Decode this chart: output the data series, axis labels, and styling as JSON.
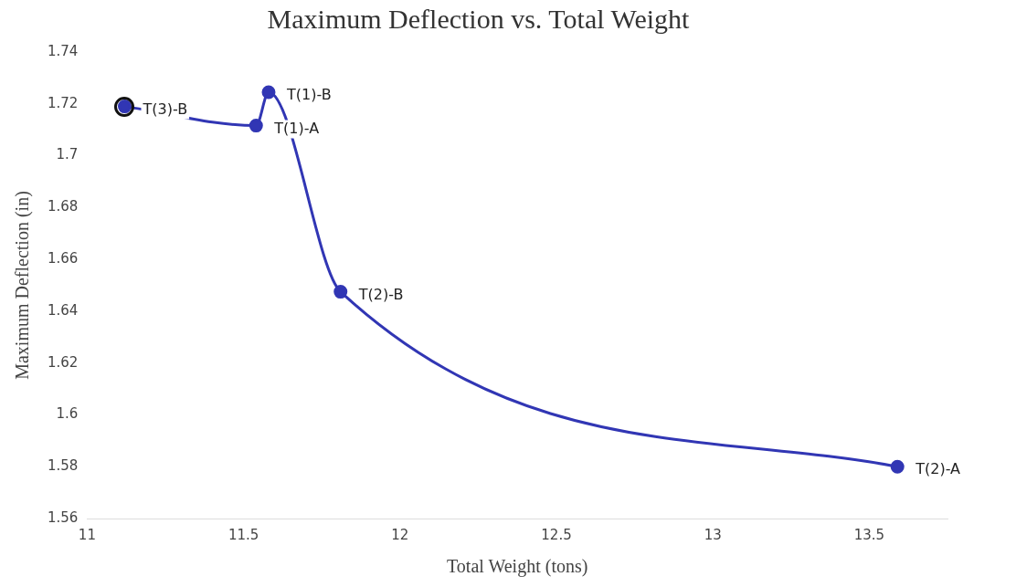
{
  "chart_data": {
    "type": "line",
    "title": "Maximum Deflection vs. Total Weight",
    "xlabel": "Total Weight (tons)",
    "ylabel": "Maximum Deflection (in)",
    "x": [
      11.12,
      11.54,
      11.58,
      11.81,
      13.59
    ],
    "series": [
      {
        "color": "#3136b4",
        "values": [
          1.719,
          1.7116,
          1.7245,
          1.6475,
          1.58
        ]
      }
    ],
    "xlim": [
      11,
      13.75
    ],
    "xticks": [
      11,
      11.5,
      12,
      12.5,
      13,
      13.5
    ],
    "ylim": [
      1.56,
      1.74
    ],
    "yticks": [
      1.56,
      1.58,
      1.6,
      1.62,
      1.64,
      1.66,
      1.68,
      1.7,
      1.72,
      1.74
    ],
    "grid": false,
    "legend": false,
    "marker": "circle",
    "line_style": "solid",
    "annotations": [
      {
        "text": "T(3)-B",
        "x": 11.12,
        "y": 1.719
      },
      {
        "text": "T(1)-A",
        "x": 11.54,
        "y": 1.7116
      },
      {
        "text": "T(1)-B",
        "x": 11.58,
        "y": 1.7245
      },
      {
        "text": "T(2)-B",
        "x": 11.81,
        "y": 1.6475
      },
      {
        "text": "T(2)-A",
        "x": 13.59,
        "y": 1.58
      }
    ]
  }
}
